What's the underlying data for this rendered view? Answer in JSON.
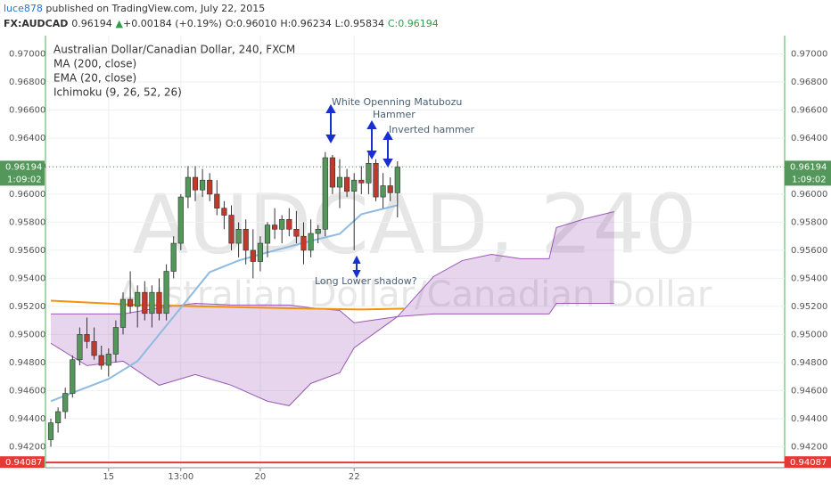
{
  "header": {
    "author": "luce878",
    "published": "published on TradingView.com, July 22, 2015",
    "symbol": "FX:AUDCAD",
    "price": "0.96194",
    "arrow": "▲",
    "change": "+0.00184 (+0.19%)",
    "open": "O:0.96010",
    "high": "H:0.96234",
    "low": "L:0.95834",
    "close": "C:0.96194"
  },
  "chart_data": {
    "type": "candlestick",
    "legend": [
      "Australian Dollar/Canadian Dollar, 240, FXCM",
      "MA (200, close)",
      "EMA (20, close)",
      "Ichimoku (9, 26, 52, 26)"
    ],
    "watermark": "AUDCAD, 240",
    "watermark_sub": "Australian Dollar/Canadian Dollar",
    "categories": [
      null,
      null,
      null,
      null,
      null,
      null,
      null,
      null,
      "15",
      null,
      null,
      null,
      null,
      null,
      null,
      null,
      null,
      null,
      "13:00",
      null,
      null,
      null,
      null,
      null,
      null,
      null,
      null,
      null,
      null,
      "20",
      null,
      null,
      null,
      null,
      null,
      null,
      null,
      null,
      null,
      null,
      null,
      null,
      "22",
      null,
      null,
      null,
      null,
      null,
      null
    ],
    "open": [
      0.9425,
      0.9437,
      0.9445,
      0.9458,
      0.9482,
      0.95,
      0.9495,
      0.9485,
      0.9478,
      0.9486,
      0.9505,
      0.9525,
      0.952,
      0.953,
      0.9515,
      0.953,
      0.9515,
      0.9545,
      0.9565,
      0.9598,
      0.9612,
      0.9603,
      0.961,
      0.96,
      0.959,
      0.9585,
      0.9565,
      0.9575,
      0.956,
      0.9552,
      0.9565,
      0.9578,
      0.9575,
      0.9582,
      0.9575,
      0.957,
      0.956,
      0.9572,
      0.9575,
      0.9626,
      0.9605,
      0.9612,
      0.9602,
      0.961,
      0.9608,
      0.9622,
      0.9598,
      0.9606,
      0.9601
    ],
    "high": [
      0.944,
      0.9448,
      0.9462,
      0.9485,
      0.9505,
      0.9512,
      0.9505,
      0.9492,
      0.949,
      0.951,
      0.953,
      0.9545,
      0.9535,
      0.9538,
      0.9535,
      0.954,
      0.955,
      0.957,
      0.96,
      0.962,
      0.962,
      0.9618,
      0.9615,
      0.961,
      0.9595,
      0.9592,
      0.958,
      0.9582,
      0.9575,
      0.957,
      0.958,
      0.959,
      0.9585,
      0.959,
      0.9588,
      0.958,
      0.9582,
      0.9578,
      0.963,
      0.9628,
      0.9625,
      0.9618,
      0.9615,
      0.962,
      0.963,
      0.9625,
      0.9615,
      0.9612,
      0.96234
    ],
    "low": [
      0.942,
      0.943,
      0.944,
      0.9455,
      0.9478,
      0.949,
      0.9482,
      0.9475,
      0.947,
      0.948,
      0.95,
      0.9515,
      0.9505,
      0.951,
      0.9505,
      0.951,
      0.951,
      0.954,
      0.956,
      0.959,
      0.9595,
      0.9598,
      0.9595,
      0.9585,
      0.9575,
      0.956,
      0.9555,
      0.955,
      0.954,
      0.9545,
      0.9555,
      0.9568,
      0.9565,
      0.957,
      0.9565,
      0.955,
      0.9555,
      0.9565,
      0.957,
      0.96,
      0.959,
      0.9598,
      0.956,
      0.96,
      0.96,
      0.9595,
      0.959,
      0.9595,
      0.95834
    ],
    "close": [
      0.9437,
      0.9445,
      0.9458,
      0.9482,
      0.95,
      0.9495,
      0.9485,
      0.9478,
      0.9486,
      0.9505,
      0.9525,
      0.952,
      0.953,
      0.9515,
      0.953,
      0.9515,
      0.9545,
      0.9565,
      0.9598,
      0.9612,
      0.9603,
      0.961,
      0.96,
      0.959,
      0.9585,
      0.9565,
      0.9575,
      0.956,
      0.9552,
      0.9565,
      0.9578,
      0.9575,
      0.9582,
      0.9575,
      0.957,
      0.956,
      0.9572,
      0.9575,
      0.9626,
      0.9605,
      0.9612,
      0.9602,
      0.961,
      0.9608,
      0.9622,
      0.9598,
      0.9606,
      0.9601,
      0.96194
    ],
    "up_color": "#53975b",
    "down_color": "#c0392b",
    "indicators": [
      {
        "name": "MA (200, close)",
        "color": "#f0930f",
        "x": [
          0,
          12,
          30,
          43,
          49
        ],
        "values": [
          0.95241,
          0.9521,
          0.9519,
          0.95178,
          0.95184
        ]
      },
      {
        "name": "EMA (20, close)",
        "color": "#8fbbe0",
        "x": [
          0,
          8,
          12,
          18,
          22,
          26,
          29,
          36,
          40,
          43,
          48
        ],
        "values": [
          0.94524,
          0.94683,
          0.9481,
          0.9519,
          0.95444,
          0.95527,
          0.95571,
          0.95667,
          0.95717,
          0.95857,
          0.95921
        ]
      }
    ],
    "cloud": {
      "name": "Ichimoku (9, 26, 52, 26)",
      "color": "#9b59b6",
      "x": [
        0,
        5,
        10,
        15,
        20,
        25,
        30,
        33,
        36,
        40,
        42,
        48,
        53,
        57,
        61,
        65,
        69,
        70,
        74,
        78
      ],
      "upper": [
        0.95146,
        0.95146,
        0.95146,
        0.9519,
        0.95222,
        0.9521,
        0.9521,
        0.9521,
        0.9519,
        0.95171,
        0.95083,
        0.95127,
        0.95413,
        0.95527,
        0.95571,
        0.9554,
        0.9554,
        0.95762,
        0.95825,
        0.95876
      ],
      "lower": [
        0.94937,
        0.94778,
        0.9481,
        0.94638,
        0.94714,
        0.94638,
        0.94524,
        0.94492,
        0.94651,
        0.94727,
        0.94905,
        0.95127,
        0.95146,
        0.95146,
        0.95146,
        0.95146,
        0.95146,
        0.95222,
        0.95222,
        0.95222
      ]
    },
    "ylim": [
      0.9405,
      0.9713
    ],
    "yticks": [
      {
        "value": 0.97,
        "label": "0.97000"
      },
      {
        "value": 0.968,
        "label": "0.96800"
      },
      {
        "value": 0.966,
        "label": "0.96600"
      },
      {
        "value": 0.964,
        "label": "0.96400"
      },
      {
        "value": 0.962,
        "label": "0.96200"
      },
      {
        "value": 0.96,
        "label": "0.96000"
      },
      {
        "value": 0.958,
        "label": "0.95800"
      },
      {
        "value": 0.956,
        "label": "0.95600"
      },
      {
        "value": 0.954,
        "label": "0.95400"
      },
      {
        "value": 0.952,
        "label": "0.95200"
      },
      {
        "value": 0.95,
        "label": "0.95000"
      },
      {
        "value": 0.948,
        "label": "0.94800"
      },
      {
        "value": 0.946,
        "label": "0.94600"
      },
      {
        "value": 0.944,
        "label": "0.94400"
      },
      {
        "value": 0.942,
        "label": "0.94200"
      }
    ],
    "grid": true,
    "last_price": {
      "value": 0.96194,
      "label": "0.96194"
    },
    "countdown": "1:09:02",
    "alert_line": {
      "value": 0.94087,
      "label": "0.94087"
    },
    "annotations": [
      "White Openning Matubozu",
      "Hammer",
      "Inverted hammer",
      "Long Lower shadow?"
    ]
  }
}
